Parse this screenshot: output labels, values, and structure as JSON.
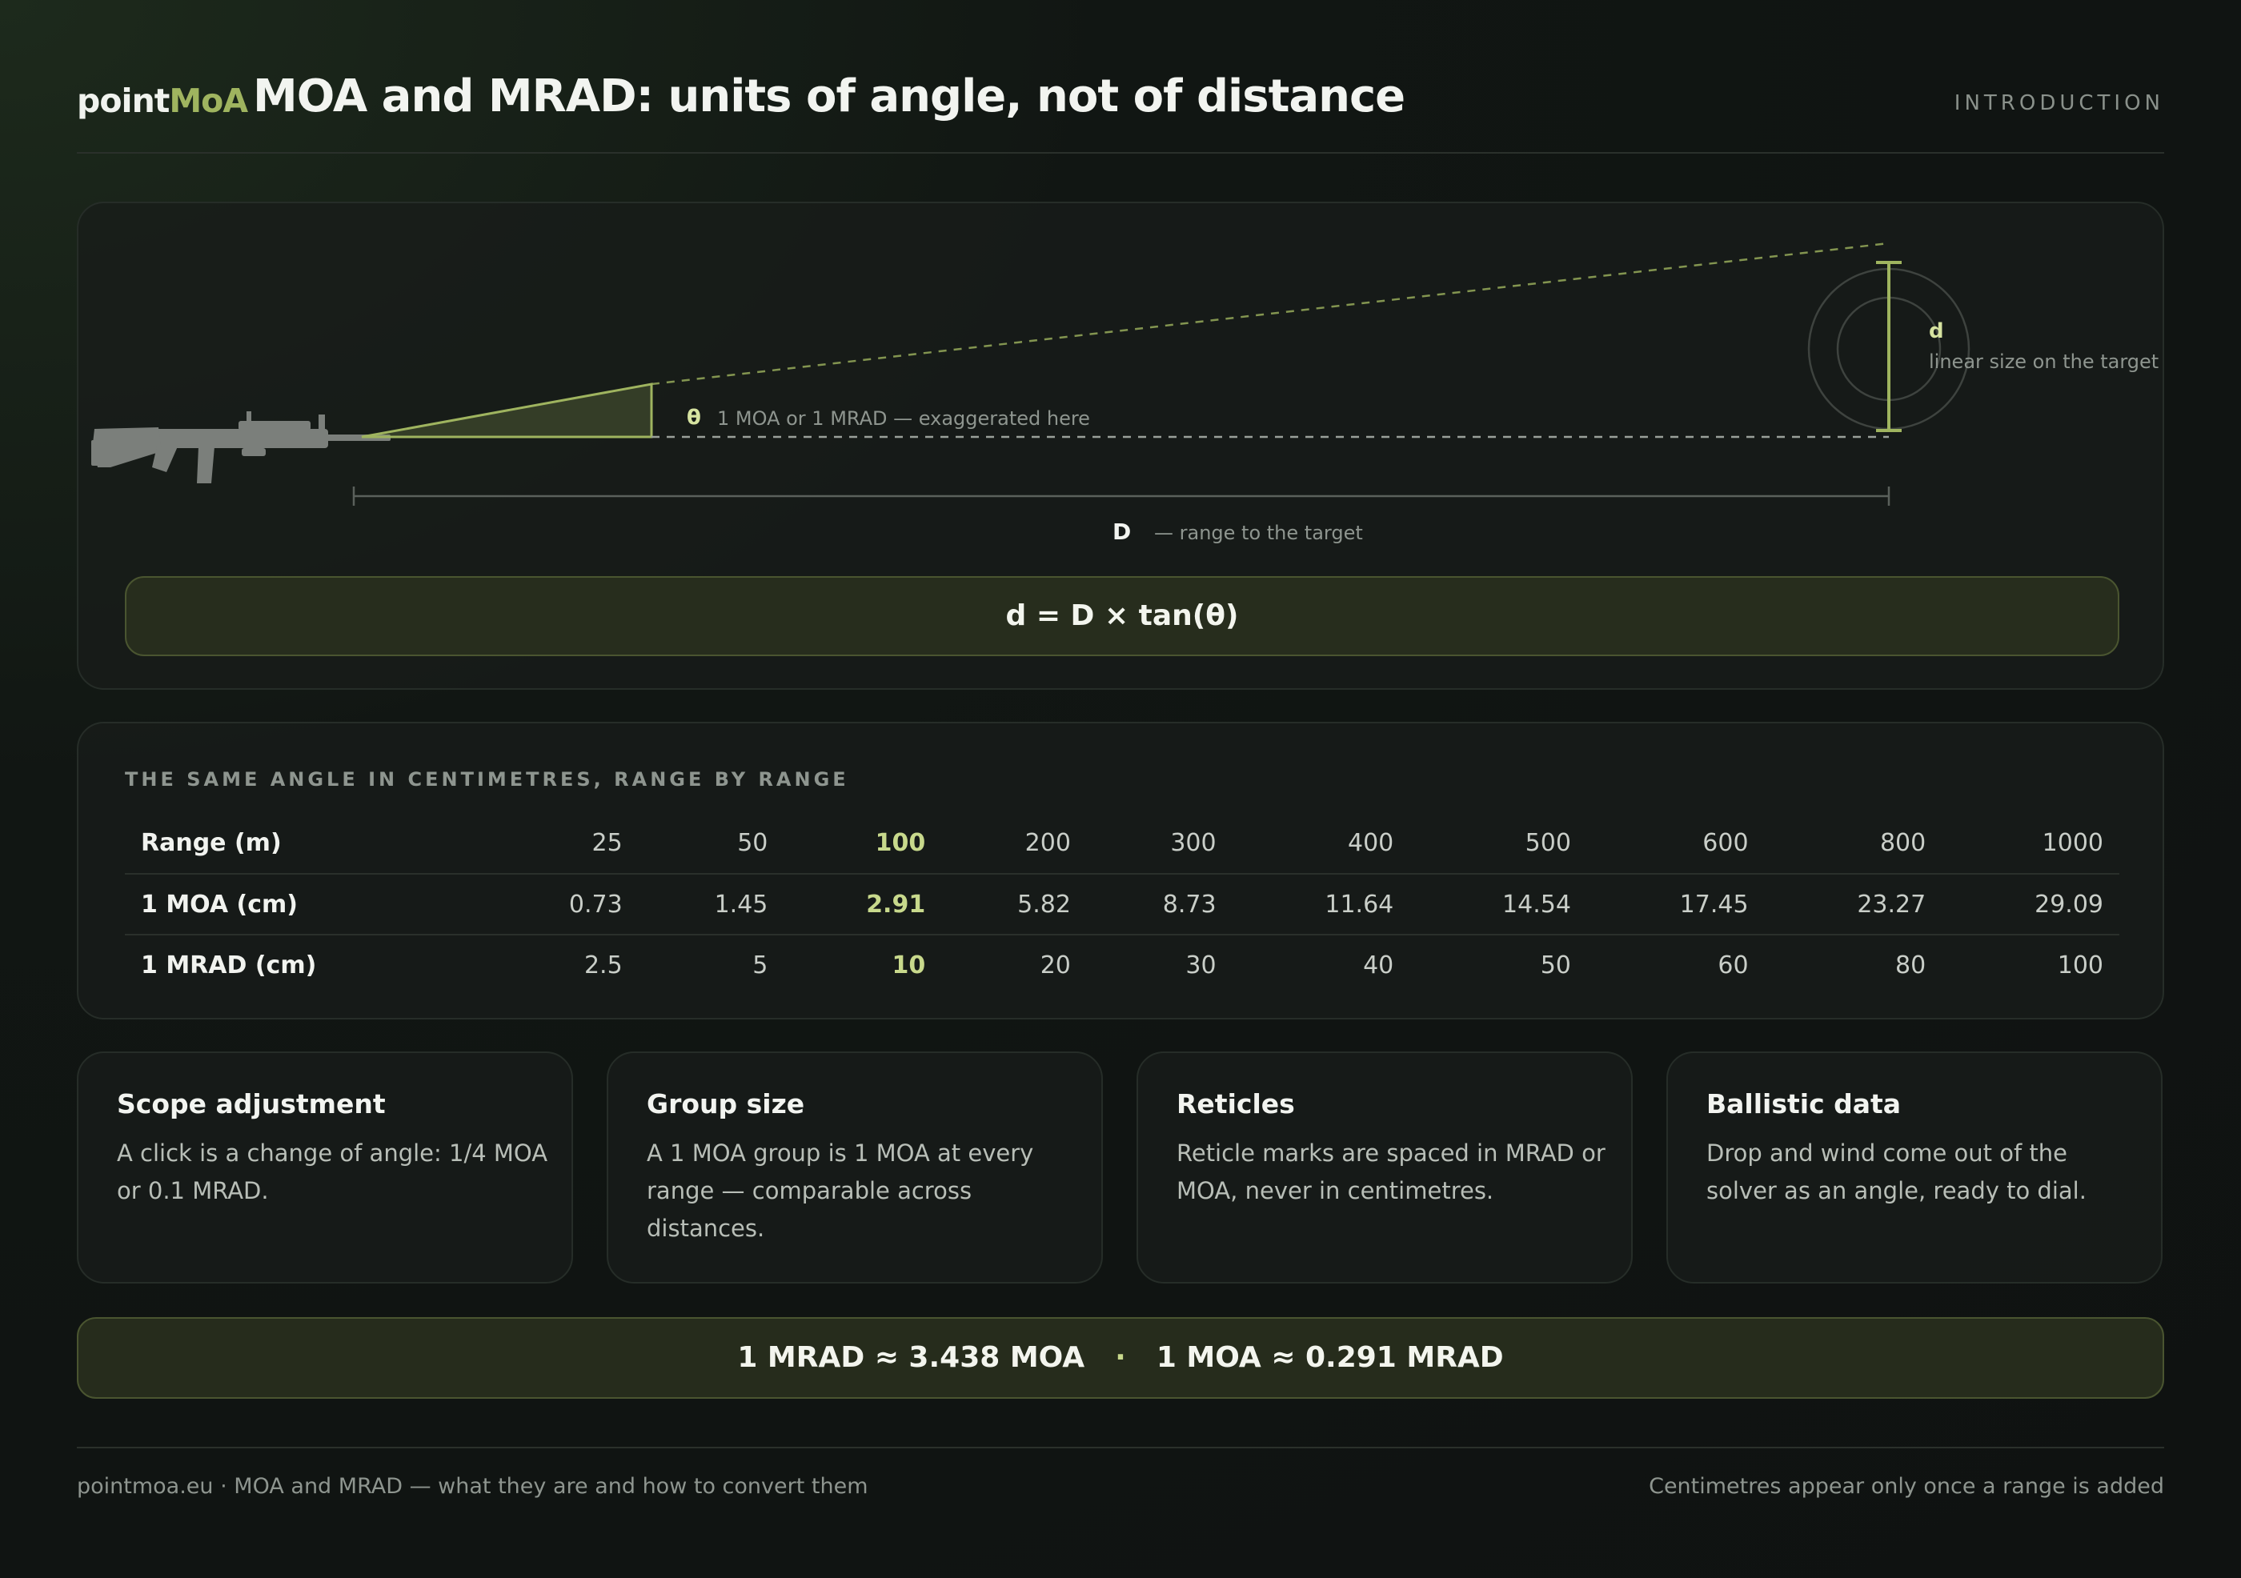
{
  "header": {
    "brand_a": "point",
    "brand_b": "MoA",
    "title": "MOA and MRAD: units of angle, not of distance",
    "section": "INTRODUCTION"
  },
  "diagram": {
    "theta_symbol": "θ",
    "theta_label": "1 MOA or 1 MRAD — exaggerated here",
    "d_symbol": "d",
    "d_label": "linear size on the target",
    "D_symbol": "D",
    "D_label": "— range to the target",
    "formula": "d = D × tan(θ)"
  },
  "table": {
    "caption": "THE SAME ANGLE IN CENTIMETRES, RANGE BY RANGE",
    "header": [
      "Range (m)",
      "25",
      "50",
      "100",
      "200",
      "300",
      "400",
      "500",
      "600",
      "800",
      "1000"
    ],
    "rows": [
      [
        "1 MOA (cm)",
        "0.73",
        "1.45",
        "2.91",
        "5.82",
        "8.73",
        "11.64",
        "14.54",
        "17.45",
        "23.27",
        "29.09"
      ],
      [
        "1 MRAD (cm)",
        "2.5",
        "5",
        "10",
        "20",
        "30",
        "40",
        "50",
        "60",
        "80",
        "100"
      ]
    ],
    "highlight_column": 3
  },
  "cards": [
    {
      "title": "Scope adjustment",
      "text": "A click is a change of angle: 1/4 MOA or 0.1 MRAD."
    },
    {
      "title": "Group size",
      "text": "A 1 MOA group is 1 MOA at every range — comparable across distances."
    },
    {
      "title": "Reticles",
      "text": "Reticle marks are spaced in MRAD or MOA, never in centimetres."
    },
    {
      "title": "Ballistic data",
      "text": "Drop and wind come out of the solver as an angle, ready to dial."
    }
  ],
  "conversion": {
    "a": "1 MRAD ≈ 3.438 MOA",
    "sep": "·",
    "b": "1 MOA ≈ 0.291 MRAD"
  },
  "footer": {
    "left": "pointmoa.eu · MOA and MRAD — what they are and how to convert them",
    "right": "Centimetres appear only once a range is added"
  },
  "colors": {
    "accent": "#9fb45f",
    "accent_light": "#c8d98c",
    "background": "#111613"
  },
  "icons": {
    "rifle": "rifle-silhouette-icon",
    "target": "target-circle-icon"
  }
}
